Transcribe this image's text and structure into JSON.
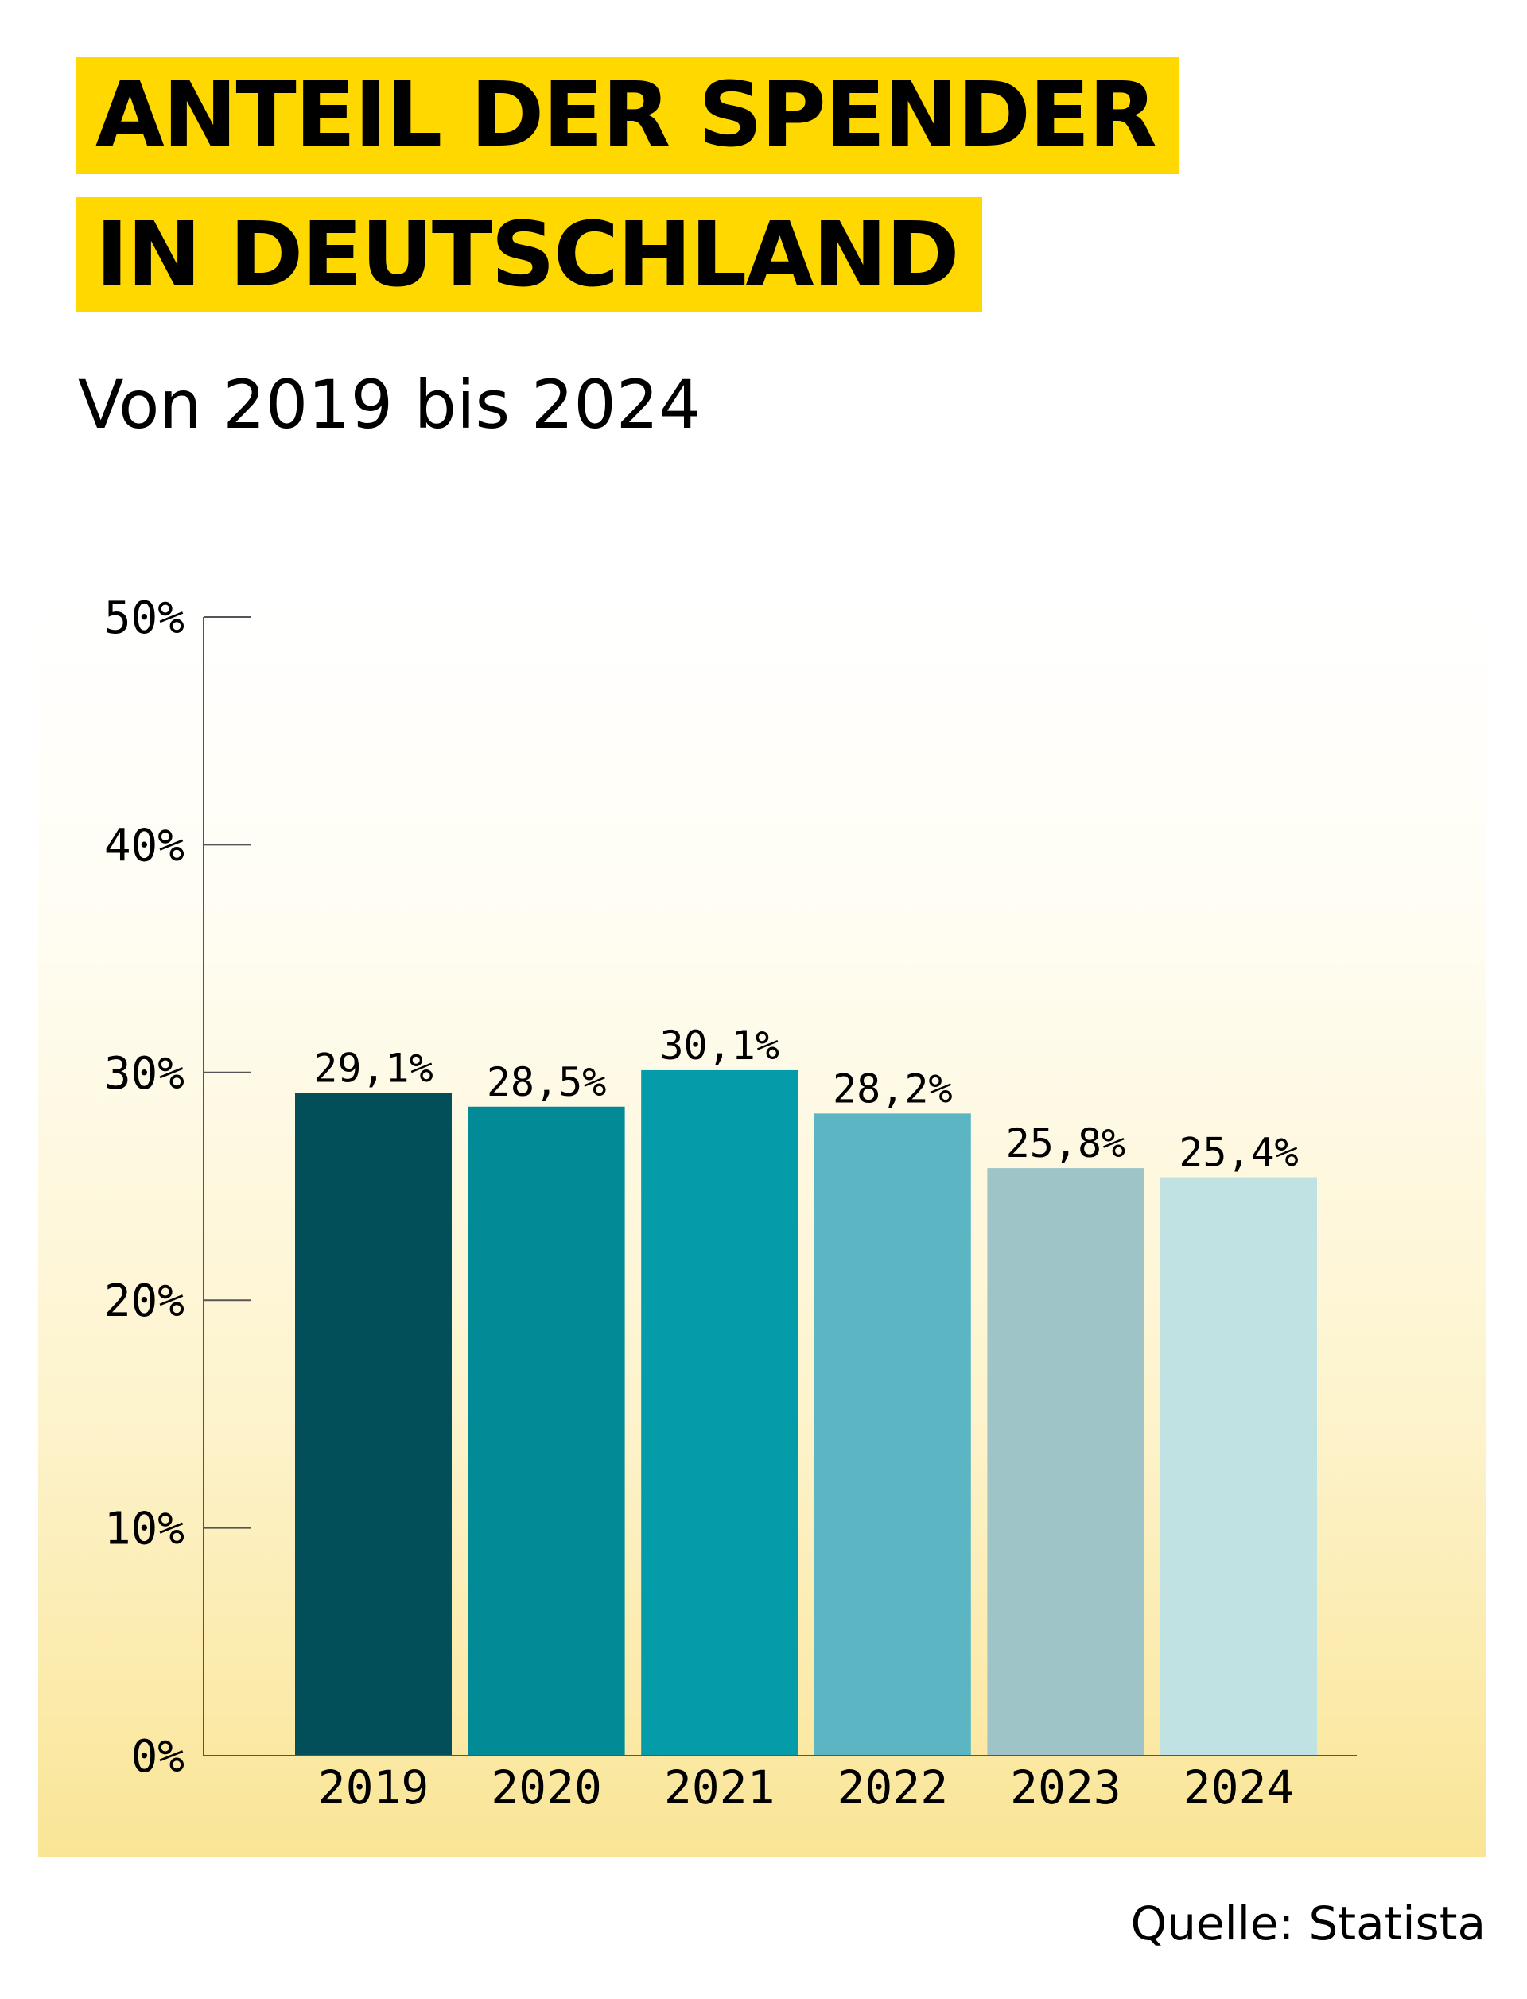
{
  "title_line1": "ANTEIL DER SPENDER",
  "title_line2": "IN DEUTSCHLAND",
  "subtitle": "Von 2019 bis 2024",
  "source": "Quelle: Statista",
  "colors": {
    "title_highlight": "#ffd800",
    "background_bottom": "#fae596"
  },
  "chart_data": {
    "type": "bar",
    "categories": [
      "2019",
      "2020",
      "2021",
      "2022",
      "2023",
      "2024"
    ],
    "values": [
      29.1,
      28.5,
      30.1,
      28.2,
      25.8,
      25.4
    ],
    "data_labels": [
      "29,1%",
      "28,5%",
      "30,1%",
      "28,2%",
      "25,8%",
      "25,4%"
    ],
    "bar_colors": [
      "#024f5a",
      "#028a96",
      "#039ca8",
      "#5cb5c3",
      "#9fc4c7",
      "#c0e2e3"
    ],
    "ylim": [
      0,
      50
    ],
    "yticks": [
      0,
      10,
      20,
      30,
      40,
      50
    ],
    "ytick_labels": [
      "0%",
      "10%",
      "20%",
      "30%",
      "40%",
      "50%"
    ],
    "grid": false,
    "xlabel": "",
    "ylabel": ""
  }
}
